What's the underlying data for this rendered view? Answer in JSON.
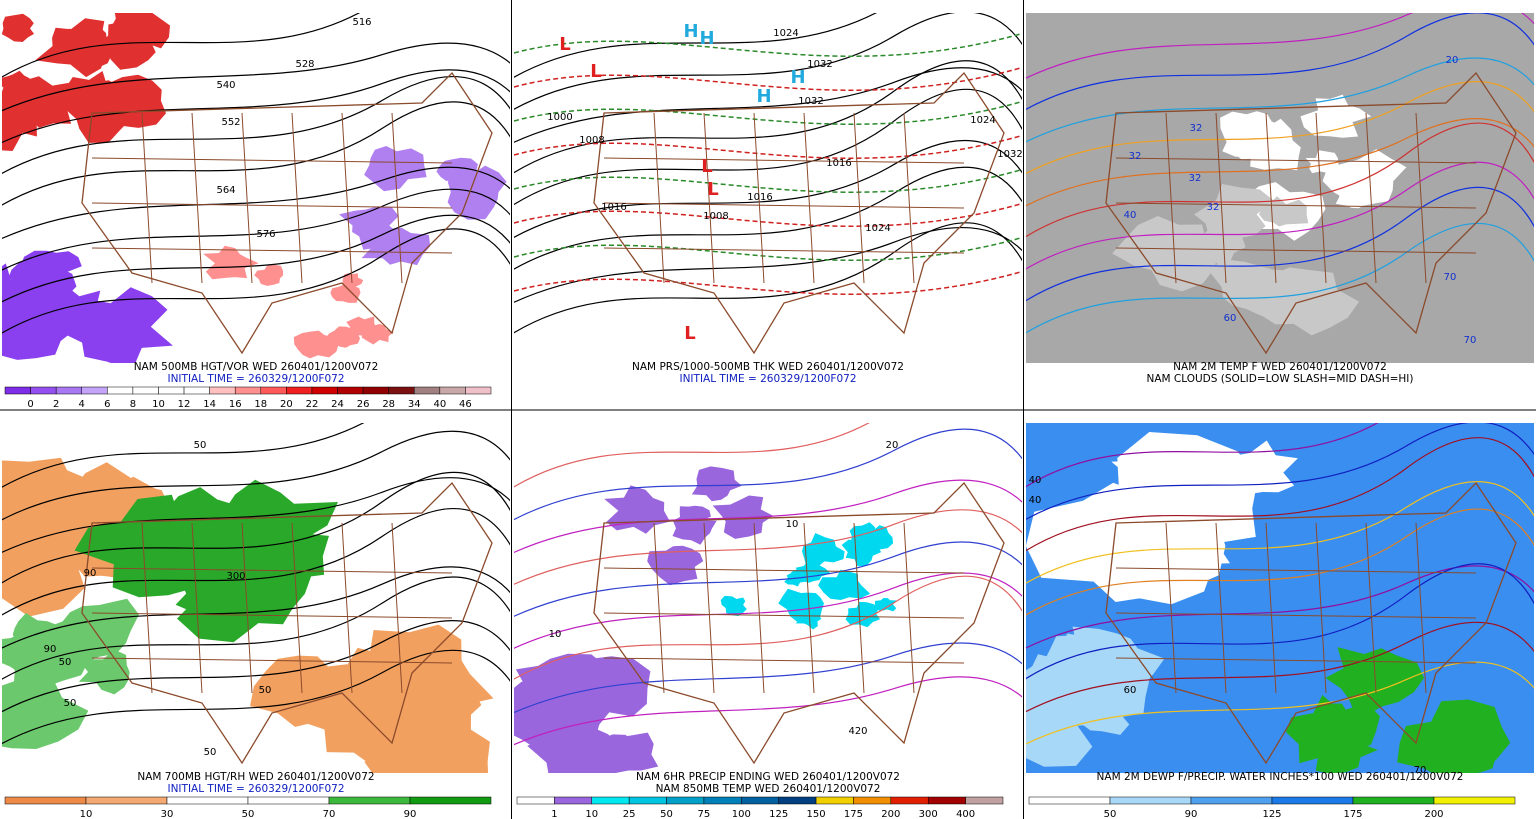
{
  "panels": [
    {
      "caption_lines": [
        "NAM 500MB HGT/VOR WED 260401/1200V072",
        "INITIAL TIME = 260329/1200F072"
      ],
      "colorbar": {
        "colors": [
          "#7d2ee6",
          "#9450ee",
          "#a878f2",
          "#c4a4f8",
          "#ffffff",
          "#ffffff",
          "#ffffff",
          "#ffffff",
          "#ffc0c0",
          "#ff9090",
          "#ff5a5a",
          "#ee2020",
          "#d00000",
          "#b00000",
          "#900000",
          "#7a1010",
          "#a08080",
          "#c8a8a8",
          "#f0c0c8"
        ],
        "labels": [
          "0",
          "2",
          "4",
          "6",
          "8",
          "10",
          "12",
          "14",
          "16",
          "18",
          "20",
          "22",
          "24",
          "26",
          "28",
          "34",
          "40",
          "46"
        ]
      },
      "contour_labels": [
        "516",
        "528",
        "540",
        "552",
        "564",
        "576"
      ]
    },
    {
      "caption_lines": [
        "NAM PRS/1000-500MB THK WED 260401/1200V072",
        "INITIAL TIME = 260329/1200F072"
      ],
      "contour_labels": [
        "1024",
        "1032",
        "1032",
        "1000",
        "1008",
        "1016",
        "1008",
        "1016",
        "1024",
        "1016",
        "1024",
        "1032",
        "H",
        "H",
        "H",
        "H",
        "L",
        "L",
        "L",
        "L",
        "L"
      ]
    },
    {
      "caption_lines": [
        "NAM 2M TEMP F WED 260401/1200V072",
        "NAM CLOUDS (SOLID=LOW SLASH=MID DASH=HI)"
      ],
      "contour_labels": [
        "32",
        "32",
        "32",
        "32",
        "40",
        "60",
        "70",
        "70",
        "20"
      ]
    },
    {
      "caption_lines": [
        "NAM 700MB HGT/RH WED 260401/1200V072",
        "INITIAL TIME = 260329/1200F072"
      ],
      "colorbar": {
        "colors": [
          "#ee8a48",
          "#f4a872",
          "#ffffff",
          "#ffffff",
          "#3cb83c",
          "#139a13"
        ],
        "labels": [
          "10",
          "30",
          "50",
          "70",
          "90"
        ]
      },
      "contour_labels": [
        "50",
        "50",
        "50",
        "90",
        "90",
        "300",
        "50",
        "50"
      ]
    },
    {
      "caption_lines": [
        "NAM 6HR PRECIP ENDING WED 260401/1200V072",
        "NAM 850MB TEMP WED 260401/1200V072"
      ],
      "colorbar": {
        "colors": [
          "#ffffff",
          "#9966dd",
          "#00e8f0",
          "#00c4e0",
          "#00a0c8",
          "#0080b8",
          "#0060a0",
          "#004080",
          "#f0d000",
          "#f09000",
          "#e02000",
          "#a00000",
          "#c0a0a0"
        ],
        "labels": [
          "1",
          "10",
          "25",
          "50",
          "75",
          "100",
          "125",
          "150",
          "175",
          "200",
          "300",
          "400"
        ]
      },
      "contour_labels": [
        "10",
        "20",
        "10",
        "420"
      ]
    },
    {
      "caption_lines": [
        "NAM 2M DEWP F/PRECIP. WATER INCHES*100 WED 260401/1200V072"
      ],
      "colorbar": {
        "colors": [
          "#ffffff",
          "#a8d8f8",
          "#50a0f0",
          "#1c7ae8",
          "#20b020",
          "#f0f000"
        ],
        "labels": [
          "50",
          "90",
          "125",
          "175",
          "200"
        ]
      },
      "contour_labels": [
        "40",
        "40",
        "70",
        "60"
      ]
    }
  ]
}
